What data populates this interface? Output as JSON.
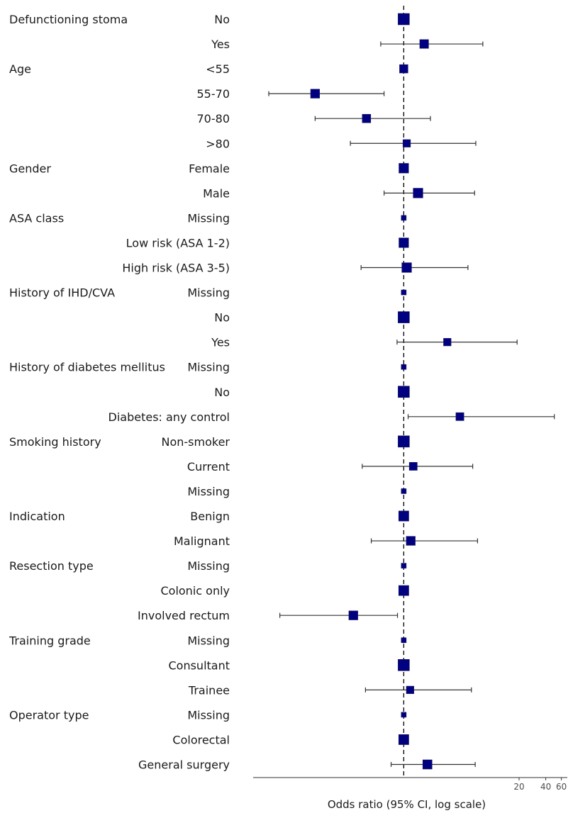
{
  "colors": {
    "marker": "#000080",
    "marker_stroke": "#1a1a5a",
    "ci": "#333333",
    "reference_line": "#000000",
    "axis": "#333333"
  },
  "chart_data": {
    "type": "forest",
    "xlabel": "Odds ratio (95% CI, log scale)",
    "x_scale": "log",
    "xlim": [
      0.02,
      70
    ],
    "reference_value": 1,
    "x_ticks": [
      20,
      40,
      60
    ],
    "x_tick_labels": [
      "20",
      "40",
      "60"
    ],
    "rows": [
      {
        "variable": "Defunctioning stoma",
        "level": "No",
        "or": 1,
        "lo": null,
        "hi": null,
        "weight": 1.0
      },
      {
        "variable": "",
        "level": "Yes",
        "or": 1.7,
        "lo": 0.55,
        "hi": 7.8,
        "weight": 0.7
      },
      {
        "variable": "Age",
        "level": "<55",
        "or": 1,
        "lo": null,
        "hi": null,
        "weight": 0.65
      },
      {
        "variable": "",
        "level": "55-70",
        "or": 0.1,
        "lo": 0.03,
        "hi": 0.6,
        "weight": 0.72
      },
      {
        "variable": "",
        "level": "70-80",
        "or": 0.38,
        "lo": 0.1,
        "hi": 2.0,
        "weight": 0.66
      },
      {
        "variable": "",
        "level": ">80",
        "or": 1.08,
        "lo": 0.25,
        "hi": 6.5,
        "weight": 0.55
      },
      {
        "variable": "Gender",
        "level": "Female",
        "or": 1,
        "lo": null,
        "hi": null,
        "weight": 0.8
      },
      {
        "variable": "",
        "level": "Male",
        "or": 1.45,
        "lo": 0.6,
        "hi": 6.3,
        "weight": 0.8
      },
      {
        "variable": "ASA class",
        "level": "Missing",
        "or": 1,
        "lo": null,
        "hi": null,
        "weight": 0.25
      },
      {
        "variable": "",
        "level": "Low risk (ASA 1-2)",
        "or": 1,
        "lo": null,
        "hi": null,
        "weight": 0.8
      },
      {
        "variable": "",
        "level": "High risk (ASA 3-5)",
        "or": 1.08,
        "lo": 0.33,
        "hi": 5.3,
        "weight": 0.8
      },
      {
        "variable": "History of IHD/CVA",
        "level": "Missing",
        "or": 1,
        "lo": null,
        "hi": null,
        "weight": 0.25
      },
      {
        "variable": "",
        "level": "No",
        "or": 1,
        "lo": null,
        "hi": null,
        "weight": 1.0
      },
      {
        "variable": "",
        "level": "Yes",
        "or": 3.1,
        "lo": 0.84,
        "hi": 19.0,
        "weight": 0.55
      },
      {
        "variable": "History of diabetes mellitus",
        "level": "Missing",
        "or": 1,
        "lo": null,
        "hi": null,
        "weight": 0.25
      },
      {
        "variable": "",
        "level": "No",
        "or": 1,
        "lo": null,
        "hi": null,
        "weight": 1.0
      },
      {
        "variable": "",
        "level": "Diabetes: any control",
        "or": 4.3,
        "lo": 1.12,
        "hi": 50.0,
        "weight": 0.6
      },
      {
        "variable": "Smoking history",
        "level": "Non-smoker",
        "or": 1,
        "lo": null,
        "hi": null,
        "weight": 1.0
      },
      {
        "variable": "",
        "level": "Current",
        "or": 1.28,
        "lo": 0.34,
        "hi": 6.0,
        "weight": 0.6
      },
      {
        "variable": "",
        "level": "Missing",
        "or": 1,
        "lo": null,
        "hi": null,
        "weight": 0.25
      },
      {
        "variable": "Indication",
        "level": "Benign",
        "or": 1,
        "lo": null,
        "hi": null,
        "weight": 0.85
      },
      {
        "variable": "",
        "level": "Malignant",
        "or": 1.2,
        "lo": 0.43,
        "hi": 6.8,
        "weight": 0.72
      },
      {
        "variable": "Resection type",
        "level": "Missing",
        "or": 1,
        "lo": null,
        "hi": null,
        "weight": 0.25
      },
      {
        "variable": "",
        "level": "Colonic only",
        "or": 1,
        "lo": null,
        "hi": null,
        "weight": 0.85
      },
      {
        "variable": "",
        "level": "Involved rectum",
        "or": 0.27,
        "lo": 0.04,
        "hi": 0.85,
        "weight": 0.72
      },
      {
        "variable": "Training grade",
        "level": "Missing",
        "or": 1,
        "lo": null,
        "hi": null,
        "weight": 0.25
      },
      {
        "variable": "",
        "level": "Consultant",
        "or": 1,
        "lo": null,
        "hi": null,
        "weight": 1.0
      },
      {
        "variable": "",
        "level": "Trainee",
        "or": 1.18,
        "lo": 0.37,
        "hi": 5.8,
        "weight": 0.55
      },
      {
        "variable": "Operator type",
        "level": "Missing",
        "or": 1,
        "lo": null,
        "hi": null,
        "weight": 0.25
      },
      {
        "variable": "",
        "level": "Colorectal",
        "or": 1,
        "lo": null,
        "hi": null,
        "weight": 0.85
      },
      {
        "variable": "",
        "level": "General surgery",
        "or": 1.85,
        "lo": 0.72,
        "hi": 6.4,
        "weight": 0.75
      }
    ]
  }
}
